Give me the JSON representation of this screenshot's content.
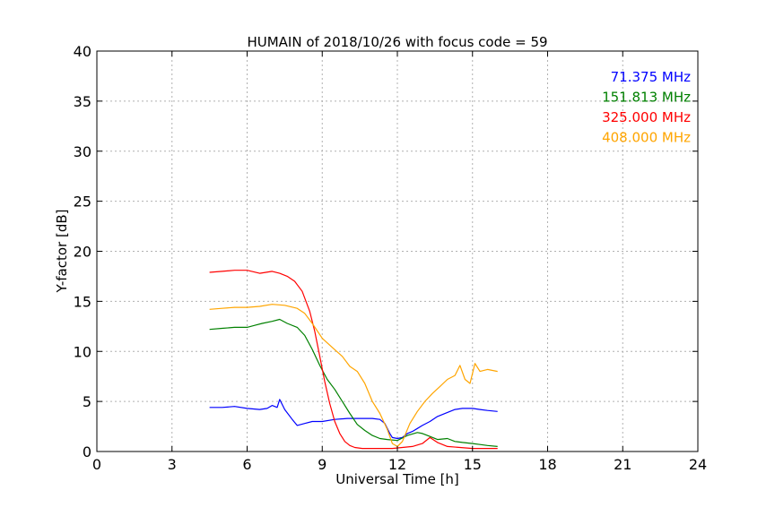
{
  "chart_data": {
    "type": "line",
    "title": "HUMAIN of 2018/10/26 with focus code = 59",
    "xlabel": "Universal Time [h]",
    "ylabel": "Y-factor [dB]",
    "xlim": [
      0,
      24
    ],
    "ylim": [
      0,
      40
    ],
    "xticks": [
      0,
      3,
      6,
      9,
      12,
      15,
      18,
      21,
      24
    ],
    "yticks": [
      0,
      5,
      10,
      15,
      20,
      25,
      30,
      35,
      40
    ],
    "xtick_labels": [
      "0",
      "3",
      "6",
      "9",
      "12",
      "15",
      "18",
      "21",
      "24"
    ],
    "ytick_labels": [
      "0",
      "5",
      "10",
      "15",
      "20",
      "25",
      "30",
      "35",
      "40"
    ],
    "grid": true,
    "legend_position": "top-right",
    "series": [
      {
        "name": "71.375 MHz",
        "color": "#0000ff",
        "x": [
          4.5,
          5.0,
          5.5,
          6.0,
          6.5,
          6.8,
          7.0,
          7.2,
          7.3,
          7.5,
          7.8,
          8.0,
          8.3,
          8.6,
          9.0,
          9.5,
          10.0,
          10.5,
          11.0,
          11.3,
          11.5,
          11.7,
          11.8,
          12.0,
          12.2,
          12.4,
          12.6,
          12.8,
          13.0,
          13.3,
          13.6,
          14.0,
          14.3,
          14.6,
          15.0,
          15.3,
          15.6,
          16.0
        ],
        "y": [
          4.4,
          4.4,
          4.5,
          4.3,
          4.2,
          4.3,
          4.6,
          4.4,
          5.2,
          4.2,
          3.2,
          2.6,
          2.8,
          3.0,
          3.0,
          3.2,
          3.3,
          3.3,
          3.3,
          3.2,
          2.8,
          1.8,
          1.4,
          1.3,
          1.4,
          1.8,
          2.0,
          2.3,
          2.6,
          3.0,
          3.5,
          3.9,
          4.2,
          4.3,
          4.3,
          4.2,
          4.1,
          4.0
        ]
      },
      {
        "name": "151.813 MHz",
        "color": "#008000",
        "x": [
          4.5,
          5.0,
          5.5,
          6.0,
          6.3,
          6.6,
          7.0,
          7.3,
          7.6,
          8.0,
          8.3,
          8.6,
          8.9,
          9.2,
          9.5,
          9.8,
          10.1,
          10.4,
          10.7,
          11.0,
          11.3,
          11.6,
          12.0,
          12.4,
          12.8,
          13.0,
          13.3,
          13.6,
          14.0,
          14.3,
          14.6,
          15.0,
          15.3,
          15.6,
          16.0
        ],
        "y": [
          12.2,
          12.3,
          12.4,
          12.4,
          12.6,
          12.8,
          13.0,
          13.2,
          12.8,
          12.4,
          11.6,
          10.2,
          8.6,
          7.2,
          6.2,
          5.0,
          3.8,
          2.7,
          2.1,
          1.6,
          1.3,
          1.2,
          1.1,
          1.6,
          1.9,
          1.8,
          1.5,
          1.2,
          1.3,
          1.0,
          0.9,
          0.8,
          0.7,
          0.6,
          0.5
        ]
      },
      {
        "name": "325.000 MHz",
        "color": "#ff0000",
        "x": [
          4.5,
          5.0,
          5.5,
          6.0,
          6.5,
          7.0,
          7.3,
          7.6,
          7.9,
          8.2,
          8.5,
          8.7,
          8.9,
          9.1,
          9.3,
          9.5,
          9.7,
          9.9,
          10.1,
          10.3,
          10.6,
          11.0,
          11.4,
          11.8,
          12.2,
          12.6,
          13.0,
          13.3,
          13.6,
          14.0,
          14.5,
          15.0,
          15.5,
          16.0
        ],
        "y": [
          17.9,
          18.0,
          18.1,
          18.1,
          17.8,
          18.0,
          17.8,
          17.5,
          17.0,
          16.0,
          14.0,
          12.0,
          9.5,
          7.0,
          4.8,
          3.0,
          1.8,
          1.0,
          0.6,
          0.4,
          0.3,
          0.3,
          0.3,
          0.3,
          0.4,
          0.5,
          0.8,
          1.4,
          0.9,
          0.5,
          0.4,
          0.3,
          0.3,
          0.3
        ]
      },
      {
        "name": "408.000 MHz",
        "color": "#ffa500",
        "x": [
          4.5,
          5.0,
          5.5,
          6.0,
          6.5,
          7.0,
          7.5,
          8.0,
          8.3,
          8.6,
          9.0,
          9.4,
          9.8,
          10.1,
          10.4,
          10.7,
          11.0,
          11.3,
          11.6,
          11.8,
          12.0,
          12.2,
          12.5,
          12.8,
          13.1,
          13.4,
          13.7,
          14.0,
          14.3,
          14.5,
          14.7,
          14.9,
          15.1,
          15.3,
          15.6,
          16.0
        ],
        "y": [
          14.2,
          14.3,
          14.4,
          14.4,
          14.5,
          14.7,
          14.6,
          14.3,
          13.8,
          12.8,
          11.3,
          10.4,
          9.5,
          8.5,
          8.0,
          6.8,
          5.0,
          3.8,
          2.2,
          0.8,
          0.5,
          1.0,
          2.8,
          4.0,
          5.0,
          5.8,
          6.5,
          7.2,
          7.6,
          8.6,
          7.2,
          6.8,
          8.8,
          8.0,
          8.2,
          8.0
        ]
      }
    ]
  }
}
